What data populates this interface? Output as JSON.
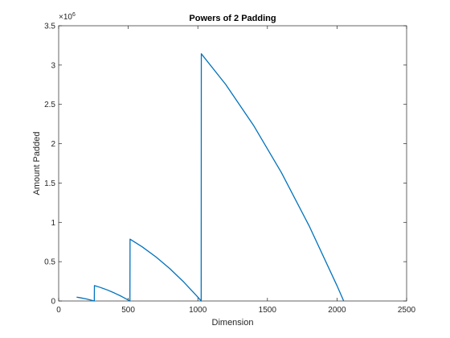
{
  "chart_data": {
    "type": "line",
    "title": "Powers of 2 Padding",
    "xlabel": "Dimension",
    "ylabel": "Amount Padded",
    "y_exponent_base": "×10",
    "y_exponent_power": "6",
    "xlim": [
      0,
      2500
    ],
    "ylim": [
      0,
      3.5
    ],
    "x_ticks": [
      0,
      500,
      1000,
      1500,
      2000,
      2500
    ],
    "x_tick_labels": [
      "0",
      "500",
      "1000",
      "1500",
      "2000",
      "2500"
    ],
    "y_ticks": [
      0,
      0.5,
      1,
      1.5,
      2,
      2.5,
      3,
      3.5
    ],
    "y_tick_labels": [
      "0",
      "0.5",
      "1",
      "1.5",
      "2",
      "2.5",
      "3",
      "3.5"
    ],
    "grid": false,
    "legend": false,
    "series_color": "#0072BD",
    "series": [
      {
        "formula": "y = (next power of 2 above x)^2 - x^2, in units of 10^6",
        "x": [
          129,
          150,
          200,
          256,
          257,
          300,
          350,
          400,
          450,
          500,
          512,
          513,
          600,
          700,
          800,
          900,
          1000,
          1024,
          1025,
          1200,
          1400,
          1600,
          1800,
          2000,
          2048
        ],
        "values": [
          0.049,
          0.043,
          0.026,
          0.0,
          0.196,
          0.172,
          0.14,
          0.102,
          0.06,
          0.012,
          0.0,
          0.786,
          0.689,
          0.559,
          0.409,
          0.239,
          0.049,
          0.0,
          3.144,
          2.754,
          2.234,
          1.634,
          0.954,
          0.194,
          0.0
        ]
      }
    ]
  }
}
